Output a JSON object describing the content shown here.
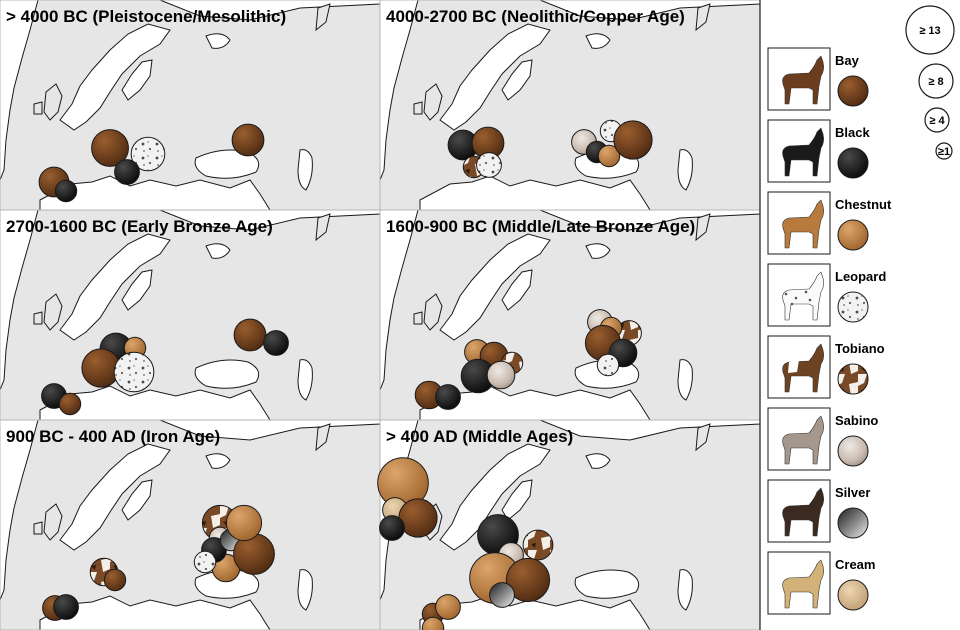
{
  "panels": [
    {
      "title": "> 4000 BC (Pleistocene/Mesolithic)",
      "markers": [
        {
          "color": "bay",
          "size": 8
        },
        {
          "color": "leopard",
          "size": 6
        },
        {
          "color": "black",
          "size": 2
        },
        {
          "color": "bay",
          "size": 4
        },
        {
          "color": "black",
          "size": 1
        },
        {
          "color": "bay",
          "size": 5
        }
      ]
    },
    {
      "title": "4000-2700 BC (Neolithic/Copper Age)",
      "markers": [
        {
          "color": "black",
          "size": 4
        },
        {
          "color": "bay",
          "size": 5
        },
        {
          "color": "tobiano",
          "size": 1
        },
        {
          "color": "leopard",
          "size": 2
        },
        {
          "color": "sabino",
          "size": 2
        },
        {
          "color": "black",
          "size": 1
        },
        {
          "color": "chestnut",
          "size": 1
        },
        {
          "color": "leopard",
          "size": 1
        },
        {
          "color": "bay",
          "size": 9
        }
      ]
    },
    {
      "title": "2700-1600 BC (Early Bronze Age)",
      "markers": [
        {
          "color": "black",
          "size": 5
        },
        {
          "color": "chestnut",
          "size": 1
        },
        {
          "color": "bay",
          "size": 9
        },
        {
          "color": "leopard",
          "size": 10
        },
        {
          "color": "black",
          "size": 2
        },
        {
          "color": "bay",
          "size": 1
        },
        {
          "color": "bay",
          "size": 5
        },
        {
          "color": "black",
          "size": 2
        }
      ]
    },
    {
      "title": "1600-900 BC (Middle/Late Bronze Age)",
      "markers": [
        {
          "color": "chestnut",
          "size": 2
        },
        {
          "color": "bay",
          "size": 3
        },
        {
          "color": "tobiano",
          "size": 1
        },
        {
          "color": "black",
          "size": 6
        },
        {
          "color": "sabino",
          "size": 3
        },
        {
          "color": "bay",
          "size": 3
        },
        {
          "color": "black",
          "size": 2
        },
        {
          "color": "sabino",
          "size": 2
        },
        {
          "color": "tobiano",
          "size": 2
        },
        {
          "color": "chestnut",
          "size": 1
        },
        {
          "color": "bay",
          "size": 7
        },
        {
          "color": "black",
          "size": 3
        },
        {
          "color": "leopard",
          "size": 1
        }
      ]
    },
    {
      "title": "900 BC - 400 AD (Iron Age)",
      "markers": [
        {
          "color": "tobiano",
          "size": 7
        },
        {
          "color": "chestnut",
          "size": 3
        },
        {
          "color": "sabino",
          "size": 1
        },
        {
          "color": "black",
          "size": 2
        },
        {
          "color": "silver",
          "size": 1
        },
        {
          "color": "bay",
          "size": 11
        },
        {
          "color": "leopard",
          "size": 1
        },
        {
          "color": "chestnut",
          "size": 7
        },
        {
          "color": "tobiano",
          "size": 3
        },
        {
          "color": "bay",
          "size": 1
        },
        {
          "color": "bay",
          "size": 2
        },
        {
          "color": "black",
          "size": 2
        }
      ]
    },
    {
      "title": "> 400 AD (Middle Ages)",
      "markers": [
        {
          "color": "chestnut",
          "size": 20
        },
        {
          "color": "cream",
          "size": 2
        },
        {
          "color": "bay",
          "size": 9
        },
        {
          "color": "black",
          "size": 2
        },
        {
          "color": "black",
          "size": 11
        },
        {
          "color": "tobiano",
          "size": 4
        },
        {
          "color": "sabino",
          "size": 2
        },
        {
          "color": "chestnut",
          "size": 20
        },
        {
          "color": "bay",
          "size": 13
        },
        {
          "color": "silver",
          "size": 2
        },
        {
          "color": "bay",
          "size": 1
        },
        {
          "color": "chestnut",
          "size": 2
        },
        {
          "color": "chestnut",
          "size": 1
        }
      ]
    }
  ],
  "legend": [
    {
      "key": "bay",
      "label": "Bay"
    },
    {
      "key": "black",
      "label": "Black"
    },
    {
      "key": "chestnut",
      "label": "Chestnut"
    },
    {
      "key": "leopard",
      "label": "Leopard"
    },
    {
      "key": "tobiano",
      "label": "Tobiano"
    },
    {
      "key": "sabino",
      "label": "Sabino"
    },
    {
      "key": "silver",
      "label": "Silver"
    },
    {
      "key": "cream",
      "label": "Cream"
    }
  ],
  "size_key": [
    {
      "label": "≥ 13",
      "size": 13
    },
    {
      "label": "≥ 8",
      "size": 8
    },
    {
      "label": "≥ 4",
      "size": 4
    },
    {
      "label": "≥1",
      "size": 1
    }
  ],
  "colors": {
    "land": "#e6e6e6",
    "sea": "#ffffff",
    "coast": "#1a1a1a",
    "divider": "#b5b5b5",
    "bay": "#6b3d1e",
    "black": "#141414",
    "chestnut": "#b87a3d",
    "leopard": "#efefef",
    "tobiano": "#7a4a26",
    "sabino": "#c9bfb7",
    "silver": "#8a8a8a",
    "cream": "#d6b98c"
  }
}
